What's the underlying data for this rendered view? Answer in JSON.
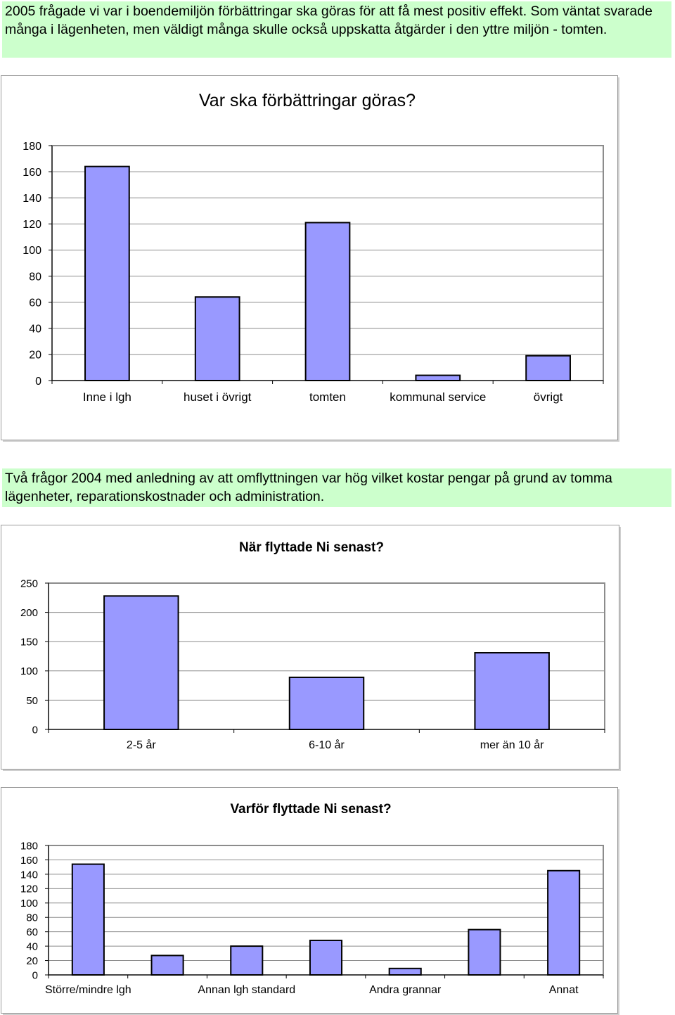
{
  "notes": {
    "intro": "2005 frågade vi var i boendemiljön förbättringar ska göras för att få mest positiv effekt. Som väntat svarade många i lägenheten, men väldigt många skulle också uppskatta åtgärder i den yttre miljön - tomten.",
    "second": "Två frågor 2004 med anledning av att omflyttningen var hög vilket kostar pengar på grund av tomma lägenheter, reparationskostnader och administration."
  },
  "colors": {
    "note_bg": "#ccffcc",
    "bar": "#9999ff",
    "bar_stroke": "#000000"
  },
  "chart_data": [
    {
      "type": "bar",
      "title": "Var ska förbättringar göras?",
      "categories": [
        "Inne i lgh",
        "huset i övrigt",
        "tomten",
        "kommunal service",
        "övrigt"
      ],
      "category_labels": [
        "Inne i lgh",
        "huset i övrigt",
        "tomten",
        "kommunal service",
        "övrigt"
      ],
      "values": [
        164,
        64,
        121,
        4,
        19
      ],
      "ylim": [
        0,
        180
      ],
      "yticks": [
        0,
        20,
        40,
        60,
        80,
        100,
        120,
        140,
        160,
        180
      ],
      "grid": true,
      "legend": "none"
    },
    {
      "type": "bar",
      "title": "När flyttade Ni senast?",
      "categories": [
        "2-5 år",
        "6-10 år",
        "mer än 10 år"
      ],
      "category_labels": [
        "2-5 år",
        "6-10 år",
        "mer än 10 år"
      ],
      "values": [
        228,
        89,
        131
      ],
      "ylim": [
        0,
        250
      ],
      "yticks": [
        0,
        50,
        100,
        150,
        200,
        250
      ],
      "grid": true,
      "legend": "none"
    },
    {
      "type": "bar",
      "title": "Varför flyttade Ni senast?",
      "categories": [
        "Större/mindre lgh",
        "",
        "Annan lgh standard",
        "",
        "Andra grannar",
        "",
        "Annat"
      ],
      "category_labels": [
        "Större/mindre lgh",
        "Annan lgh standard",
        "Andra grannar",
        "Annat"
      ],
      "values": [
        154,
        27,
        40,
        48,
        9,
        63,
        145
      ],
      "ylim": [
        0,
        180
      ],
      "yticks": [
        0,
        20,
        40,
        60,
        80,
        100,
        120,
        140,
        160,
        180
      ],
      "grid": true,
      "legend": "none"
    }
  ]
}
